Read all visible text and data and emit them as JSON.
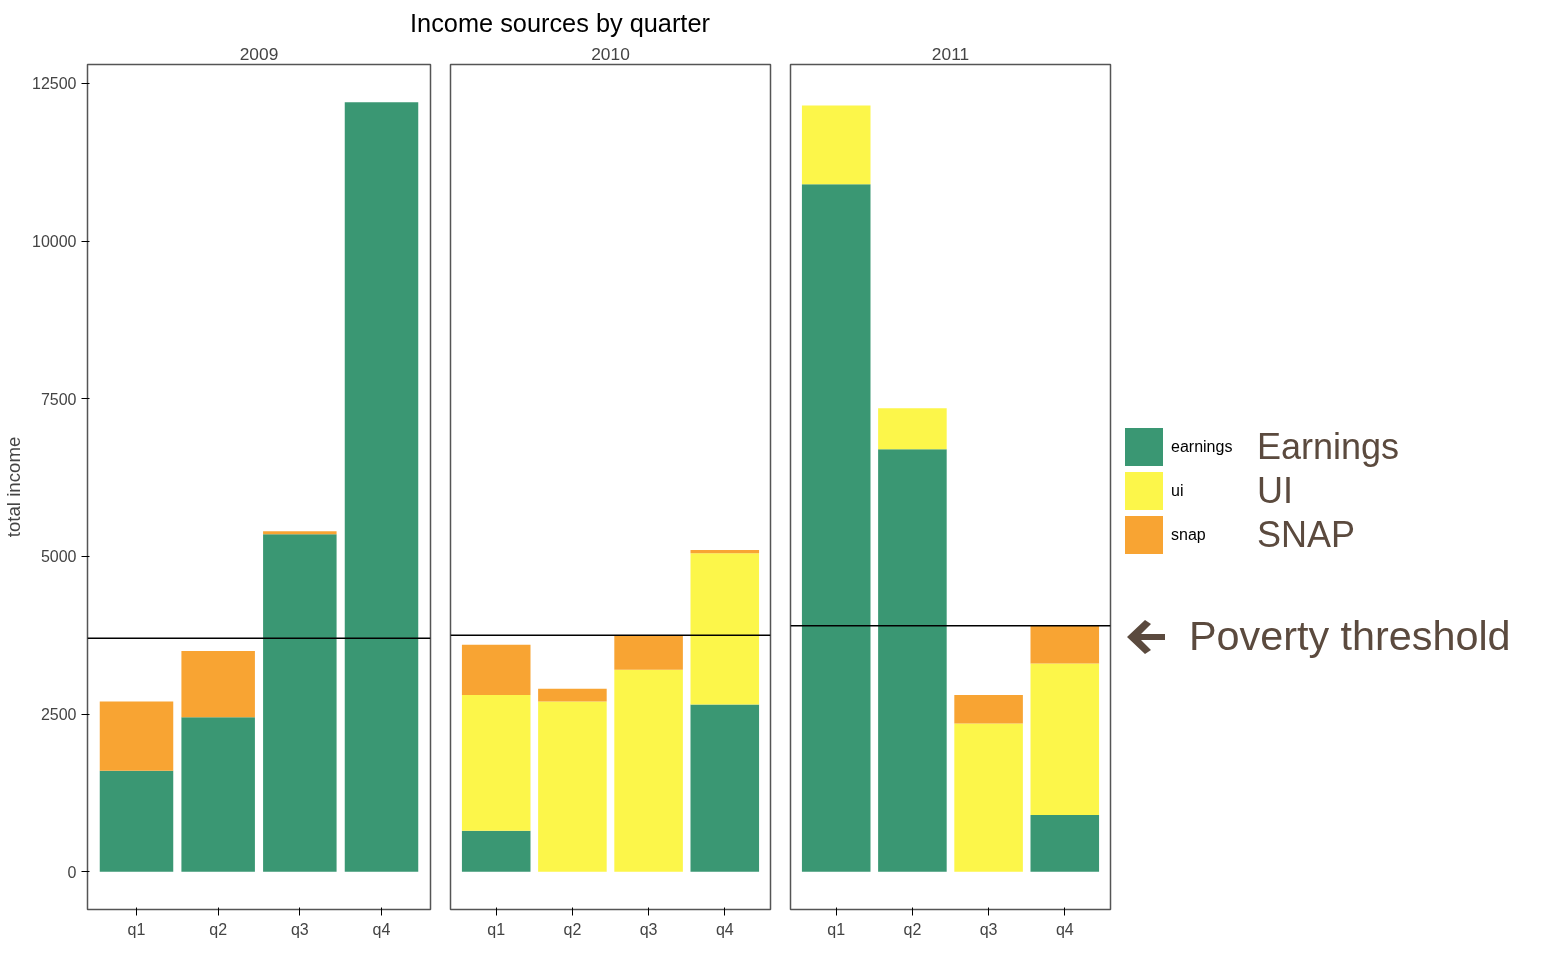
{
  "chart_data": [
    {
      "type": "bar",
      "stacked": true,
      "subtitle": "2009",
      "ylabel": "total income",
      "categories": [
        "q1",
        "q2",
        "q3",
        "q4"
      ],
      "ylim": [
        -600,
        12800
      ],
      "yticks": [
        0,
        2500,
        5000,
        7500,
        10000,
        12500
      ],
      "grid": false,
      "series": [
        {
          "color": "#3a9773",
          "values": [
            1600,
            2450,
            5350,
            12200
          ]
        },
        {
          "color": "#fcf64a",
          "values": [
            0,
            0,
            0,
            0
          ]
        },
        {
          "color": "#f8a433",
          "values": [
            1100,
            1050,
            50,
            0
          ]
        }
      ],
      "ref_lines": [
        {
          "axis": "y",
          "value": 3700,
          "color": "#000000"
        }
      ]
    },
    {
      "type": "bar",
      "stacked": true,
      "title": "Income sources by quarter",
      "subtitle": "2010",
      "categories": [
        "q1",
        "q2",
        "q3",
        "q4"
      ],
      "ylim": [
        -600,
        12800
      ],
      "yticks": [
        0,
        2500,
        5000,
        7500,
        10000,
        12500
      ],
      "tick_labels": "x",
      "grid": false,
      "series": [
        {
          "color": "#3a9773",
          "values": [
            650,
            0,
            0,
            2650
          ]
        },
        {
          "color": "#fcf64a",
          "values": [
            2150,
            2700,
            3200,
            2400
          ]
        },
        {
          "color": "#f8a433",
          "values": [
            800,
            200,
            550,
            50
          ]
        }
      ],
      "ref_lines": [
        {
          "axis": "y",
          "value": 3750,
          "color": "#000000"
        }
      ]
    },
    {
      "type": "bar",
      "stacked": true,
      "subtitle": "2011",
      "categories": [
        "q1",
        "q2",
        "q3",
        "q4"
      ],
      "ylim": [
        -600,
        12800
      ],
      "yticks": [
        0,
        2500,
        5000,
        7500,
        10000,
        12500
      ],
      "tick_labels": "x",
      "grid": false,
      "legend": "right",
      "series": [
        {
          "name": "earnings",
          "color": "#3a9773",
          "values": [
            10900,
            6700,
            0,
            900
          ]
        },
        {
          "name": "ui",
          "color": "#fcf64a",
          "values": [
            1250,
            650,
            2350,
            2400
          ]
        },
        {
          "name": "snap",
          "color": "#f8a433",
          "values": [
            0,
            0,
            450,
            600
          ]
        }
      ],
      "ref_lines": [
        {
          "axis": "y",
          "value": 3900,
          "color": "#000000"
        }
      ],
      "annotations": [
        "Earnings",
        "UI",
        "SNAP",
        "Poverty threshold"
      ]
    }
  ]
}
